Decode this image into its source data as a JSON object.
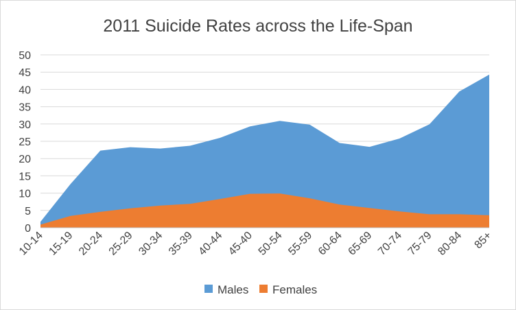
{
  "chart_data": {
    "type": "area",
    "title": "2011 Suicide Rates across the Life-Span",
    "xlabel": "",
    "ylabel": "",
    "categories": [
      "10-14",
      "15-19",
      "20-24",
      "25-29",
      "30-34",
      "35-39",
      "40-44",
      "45-40",
      "50-54",
      "55-59",
      "60-64",
      "65-69",
      "70-74",
      "75-79",
      "80-84",
      "85+"
    ],
    "ylim": [
      0,
      50
    ],
    "yticks": [
      0,
      5,
      10,
      15,
      20,
      25,
      30,
      35,
      40,
      45,
      50
    ],
    "ytick_labels": [
      "0",
      "5",
      "10",
      "15",
      "20",
      "25",
      "30",
      "35",
      "40",
      "45",
      "50"
    ],
    "grid": true,
    "legend_position": "bottom",
    "series": [
      {
        "name": "Males",
        "color": "#5b9bd5",
        "values": [
          1.7,
          12.6,
          22.3,
          23.3,
          22.9,
          23.7,
          26.0,
          29.3,
          30.9,
          29.8,
          24.5,
          23.4,
          25.8,
          29.9,
          39.4,
          44.3
        ]
      },
      {
        "name": "Females",
        "color": "#ed7d31",
        "values": [
          0.9,
          3.4,
          4.6,
          5.6,
          6.4,
          6.9,
          8.3,
          9.8,
          9.9,
          8.5,
          6.7,
          5.7,
          4.7,
          3.9,
          3.9,
          3.6
        ]
      }
    ]
  }
}
